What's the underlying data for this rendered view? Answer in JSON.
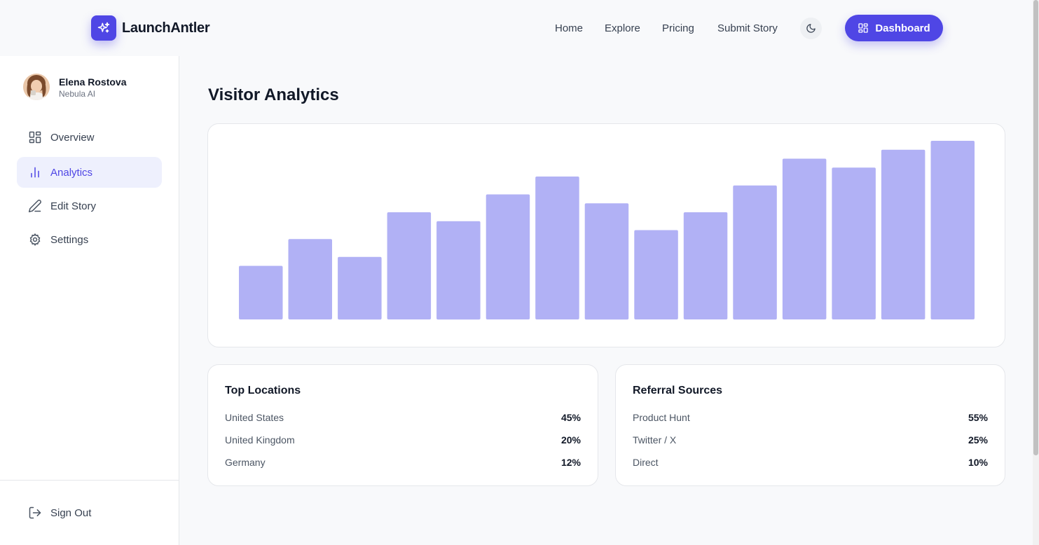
{
  "brand": {
    "name": "LaunchAntler",
    "icon": "sparkles-icon",
    "accent": "#4f46e5"
  },
  "nav": {
    "links": [
      "Home",
      "Explore",
      "Pricing",
      "Submit Story"
    ],
    "theme_icon": "moon-icon",
    "dashboard_label": "Dashboard"
  },
  "sidebar": {
    "user": {
      "name": "Elena Rostova",
      "org": "Nebula AI"
    },
    "items": [
      {
        "label": "Overview",
        "icon": "grid-icon",
        "active": false
      },
      {
        "label": "Analytics",
        "icon": "bar-chart-icon",
        "active": true
      },
      {
        "label": "Edit Story",
        "icon": "pen-icon",
        "active": false
      },
      {
        "label": "Settings",
        "icon": "gear-icon",
        "active": false
      }
    ],
    "sign_out": "Sign Out"
  },
  "main": {
    "title": "Visitor Analytics",
    "locations": {
      "title": "Top Locations",
      "rows": [
        {
          "label": "United States",
          "value": "45%"
        },
        {
          "label": "United Kingdom",
          "value": "20%"
        },
        {
          "label": "Germany",
          "value": "12%"
        }
      ]
    },
    "referrals": {
      "title": "Referral Sources",
      "rows": [
        {
          "label": "Product Hunt",
          "value": "55%"
        },
        {
          "label": "Twitter / X",
          "value": "25%"
        },
        {
          "label": "Direct",
          "value": "10%"
        }
      ]
    }
  },
  "chart_data": {
    "type": "bar",
    "values": [
      30,
      45,
      35,
      60,
      55,
      70,
      80,
      65,
      50,
      60,
      75,
      90,
      85,
      95,
      100
    ],
    "ylim": [
      0,
      100
    ],
    "bar_color": "#b1b1f5",
    "grid": false
  }
}
